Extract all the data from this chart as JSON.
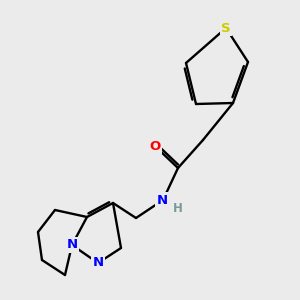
{
  "bg_color": "#ebebeb",
  "bond_color": "#000000",
  "N_color": "#0000ff",
  "O_color": "#ff0000",
  "S_color": "#cccc00",
  "H_color": "#7a9a9a",
  "atoms": {
    "S": {
      "label": "S",
      "color": "#cccc00"
    },
    "O": {
      "label": "O",
      "color": "#ff0000"
    },
    "N1": {
      "label": "N",
      "color": "#0000ff"
    },
    "N2": {
      "label": "N",
      "color": "#0000ff"
    },
    "H": {
      "label": "H",
      "color": "#7a9a9a"
    }
  }
}
